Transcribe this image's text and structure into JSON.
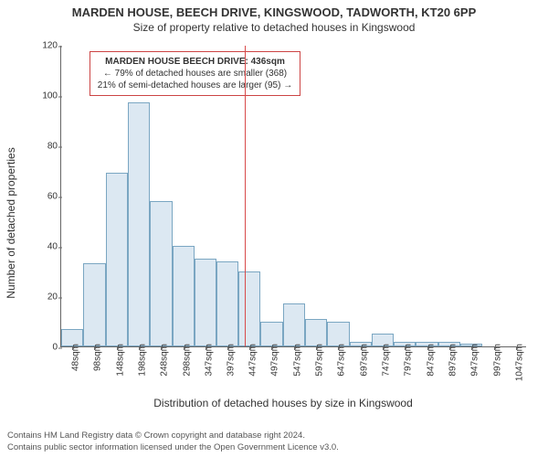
{
  "title": "MARDEN HOUSE, BEECH DRIVE, KINGSWOOD, TADWORTH, KT20 6PP",
  "subtitle": "Size of property relative to detached houses in Kingswood",
  "ylabel": "Number of detached properties",
  "xlabel": "Distribution of detached houses by size in Kingswood",
  "chart": {
    "type": "histogram",
    "ylim": [
      0,
      120
    ],
    "yticks": [
      0,
      20,
      40,
      60,
      80,
      100,
      120
    ],
    "xticks": [
      "48sqm",
      "98sqm",
      "148sqm",
      "198sqm",
      "248sqm",
      "298sqm",
      "347sqm",
      "397sqm",
      "447sqm",
      "497sqm",
      "547sqm",
      "597sqm",
      "647sqm",
      "697sqm",
      "747sqm",
      "797sqm",
      "847sqm",
      "897sqm",
      "947sqm",
      "997sqm",
      "1047sqm"
    ],
    "xtick_positions": [
      48,
      98,
      148,
      198,
      248,
      298,
      347,
      397,
      447,
      497,
      547,
      597,
      647,
      697,
      747,
      797,
      847,
      897,
      947,
      997,
      1047
    ],
    "xlim": [
      23,
      1072
    ],
    "bin_width": 50,
    "bars": [
      {
        "x": 48,
        "v": 7
      },
      {
        "x": 98,
        "v": 33
      },
      {
        "x": 148,
        "v": 69
      },
      {
        "x": 198,
        "v": 97
      },
      {
        "x": 248,
        "v": 58
      },
      {
        "x": 298,
        "v": 40
      },
      {
        "x": 348,
        "v": 35
      },
      {
        "x": 398,
        "v": 34
      },
      {
        "x": 447,
        "v": 30
      },
      {
        "x": 497,
        "v": 10
      },
      {
        "x": 547,
        "v": 17
      },
      {
        "x": 597,
        "v": 11
      },
      {
        "x": 647,
        "v": 10
      },
      {
        "x": 697,
        "v": 2
      },
      {
        "x": 747,
        "v": 5
      },
      {
        "x": 797,
        "v": 2
      },
      {
        "x": 847,
        "v": 2
      },
      {
        "x": 897,
        "v": 2
      },
      {
        "x": 947,
        "v": 1
      },
      {
        "x": 997,
        "v": 0
      },
      {
        "x": 1047,
        "v": 0
      }
    ],
    "bar_fill": "#dce8f2",
    "bar_stroke": "#7aa6c2",
    "vline_x": 436,
    "vline_color": "#d84a4a",
    "background": "#ffffff",
    "axis_color": "#666666"
  },
  "annotation": {
    "line1": "MARDEN HOUSE BEECH DRIVE: 436sqm",
    "line2": "← 79% of detached houses are smaller (368)",
    "line3": "21% of semi-detached houses are larger (95) →",
    "border": "#cc4444"
  },
  "attribution": {
    "line1": "Contains HM Land Registry data © Crown copyright and database right 2024.",
    "line2": "Contains public sector information licensed under the Open Government Licence v3.0."
  }
}
